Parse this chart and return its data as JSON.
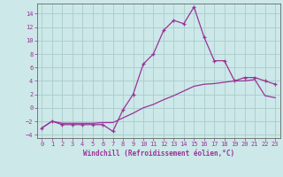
{
  "title": "",
  "xlabel": "Windchill (Refroidissement éolien,°C)",
  "ylabel": "",
  "xlim": [
    -0.5,
    23.5
  ],
  "ylim": [
    -4.5,
    15.5
  ],
  "yticks": [
    -4,
    -2,
    0,
    2,
    4,
    6,
    8,
    10,
    12,
    14
  ],
  "xticks": [
    0,
    1,
    2,
    3,
    4,
    5,
    6,
    7,
    8,
    9,
    10,
    11,
    12,
    13,
    14,
    15,
    16,
    17,
    18,
    19,
    20,
    21,
    22,
    23
  ],
  "background_color": "#cce8e8",
  "grid_color": "#aacccc",
  "line_color": "#993399",
  "line1_x": [
    0,
    1,
    2,
    3,
    4,
    5,
    6,
    7,
    8,
    9,
    10,
    11,
    12,
    13,
    14,
    15,
    16,
    17,
    18,
    19,
    20,
    21,
    22,
    23
  ],
  "line1_y": [
    -3.0,
    -2.0,
    -2.5,
    -2.5,
    -2.5,
    -2.5,
    -2.5,
    -3.5,
    -0.3,
    2.0,
    6.5,
    8.0,
    11.5,
    13.0,
    12.5,
    15.0,
    10.5,
    7.0,
    7.0,
    4.0,
    4.5,
    4.5,
    4.0,
    3.5
  ],
  "line2_x": [
    0,
    1,
    2,
    3,
    4,
    5,
    6,
    7,
    8,
    9,
    10,
    11,
    12,
    13,
    14,
    15,
    16,
    17,
    18,
    19,
    20,
    21,
    22,
    23
  ],
  "line2_y": [
    -3.0,
    -2.0,
    -2.3,
    -2.3,
    -2.3,
    -2.3,
    -2.2,
    -2.2,
    -1.5,
    -0.8,
    0.0,
    0.5,
    1.2,
    1.8,
    2.5,
    3.2,
    3.5,
    3.6,
    3.8,
    4.0,
    4.0,
    4.2,
    1.8,
    1.5
  ]
}
